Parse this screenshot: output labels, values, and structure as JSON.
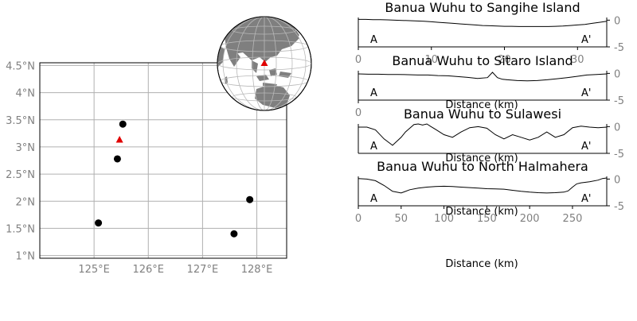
{
  "chart_data": [
    {
      "type": "scatter",
      "title": "",
      "x_ticks": [
        "125°E",
        "126°E",
        "127°E",
        "128°E"
      ],
      "x_tick_values": [
        125,
        126,
        127,
        128
      ],
      "y_ticks": [
        "1°N",
        "1.5°N",
        "2°N",
        "2.5°N",
        "3°N",
        "3.5°N",
        "4°N",
        "4.5°N"
      ],
      "y_tick_values": [
        1,
        1.5,
        2,
        2.5,
        3,
        3.5,
        4,
        4.5
      ],
      "xlim": [
        124.0,
        128.55
      ],
      "ylim": [
        0.95,
        4.55
      ],
      "grid": true,
      "series": [
        {
          "marker": "circle",
          "color": "#000000",
          "points": [
            [
              125.53,
              3.42
            ],
            [
              125.43,
              2.78
            ],
            [
              125.08,
              1.6
            ],
            [
              127.87,
              2.03
            ],
            [
              127.58,
              1.4
            ]
          ]
        },
        {
          "marker": "triangle",
          "color": "#e00000",
          "points": [
            [
              125.47,
              3.13
            ]
          ]
        }
      ],
      "inset": {
        "type": "globe",
        "marker": {
          "color": "#e00000",
          "symbol": "triangle"
        }
      }
    },
    {
      "type": "line",
      "title": "Banua Wuhu to Sangihe Island",
      "xlabel": "",
      "start_label": "A",
      "end_label": "A'",
      "x_ticks": [
        0,
        10,
        20,
        30
      ],
      "xlim": [
        0,
        34
      ],
      "y_ticks": [
        0,
        -5
      ],
      "ylim": [
        -5,
        0.5
      ],
      "x": [
        0,
        1,
        2,
        3,
        4,
        5,
        6,
        7,
        8,
        9,
        10,
        11,
        12,
        13,
        14,
        15,
        16,
        17,
        18,
        19,
        20,
        21,
        22,
        23,
        24,
        25,
        26,
        27,
        28,
        29,
        30,
        31,
        32,
        33,
        34
      ],
      "y": [
        0.15,
        0.15,
        0.1,
        0.1,
        0.05,
        0.0,
        -0.05,
        -0.1,
        -0.15,
        -0.2,
        -0.3,
        -0.4,
        -0.5,
        -0.6,
        -0.7,
        -0.8,
        -0.9,
        -1.0,
        -1.05,
        -1.1,
        -1.15,
        -1.15,
        -1.2,
        -1.2,
        -1.2,
        -1.2,
        -1.2,
        -1.15,
        -1.1,
        -1.0,
        -0.9,
        -0.8,
        -0.6,
        -0.4,
        -0.2
      ]
    },
    {
      "type": "line",
      "title": "Banua Wuhu to Sitaro Island",
      "xlabel": "Distance (km)",
      "start_label": "A",
      "end_label": "A'",
      "x_ticks": [
        0
      ],
      "xlim": [
        0,
        50
      ],
      "y_ticks": [
        0,
        -5
      ],
      "ylim": [
        -5,
        0.5
      ],
      "x": [
        0,
        2,
        4,
        6,
        8,
        10,
        12,
        14,
        16,
        18,
        20,
        22,
        24,
        26,
        27,
        28,
        29,
        30,
        32,
        34,
        36,
        38,
        40,
        42,
        44,
        46,
        48,
        50
      ],
      "y": [
        -0.1,
        -0.15,
        -0.15,
        -0.2,
        -0.2,
        -0.25,
        -0.3,
        -0.3,
        -0.4,
        -0.45,
        -0.6,
        -0.75,
        -0.95,
        -0.8,
        0.2,
        -0.8,
        -1.1,
        -1.2,
        -1.35,
        -1.4,
        -1.35,
        -1.2,
        -1.0,
        -0.8,
        -0.55,
        -0.3,
        -0.2,
        -0.1
      ]
    },
    {
      "type": "line",
      "title": "Banua Wuhu to Sulawesi",
      "xlabel": "Distance (km)",
      "start_label": "A",
      "end_label": "A'",
      "x_ticks": [],
      "xlim": [
        0,
        290
      ],
      "y_ticks": [
        0,
        -5
      ],
      "ylim": [
        -5,
        0.5
      ],
      "x": [
        0,
        10,
        20,
        30,
        40,
        50,
        55,
        60,
        65,
        70,
        75,
        80,
        85,
        90,
        100,
        110,
        120,
        130,
        140,
        150,
        160,
        170,
        180,
        190,
        200,
        210,
        220,
        230,
        240,
        250,
        260,
        270,
        280,
        290
      ],
      "y": [
        -0.1,
        -0.1,
        -0.6,
        -2.3,
        -3.5,
        -2.0,
        -1.0,
        -0.3,
        0.4,
        1.0,
        0.3,
        0.8,
        0.0,
        -0.5,
        -1.5,
        -2.0,
        -1.0,
        -0.2,
        0.0,
        -0.3,
        -1.5,
        -2.3,
        -1.5,
        -2.0,
        -2.5,
        -2.0,
        -1.0,
        -2.0,
        -1.5,
        -0.2,
        0.1,
        -0.1,
        -0.2,
        -0.1
      ]
    },
    {
      "type": "line",
      "title": "Banua Wuhu to North Halmahera",
      "xlabel": "Distance (km)",
      "start_label": "A",
      "end_label": "A'",
      "x_ticks": [
        0,
        50,
        100,
        150,
        200,
        250
      ],
      "xlim": [
        0,
        290
      ],
      "y_ticks": [
        0,
        -5
      ],
      "ylim": [
        -5,
        0.5
      ],
      "x": [
        0,
        10,
        20,
        30,
        40,
        50,
        60,
        70,
        80,
        90,
        100,
        110,
        120,
        130,
        140,
        150,
        160,
        170,
        180,
        190,
        200,
        210,
        220,
        230,
        240,
        245,
        250,
        255,
        260,
        270,
        280,
        285,
        290
      ],
      "y": [
        0.1,
        0.0,
        -0.3,
        -1.2,
        -2.3,
        -2.6,
        -2.0,
        -1.7,
        -1.5,
        -1.4,
        -1.35,
        -1.4,
        -1.5,
        -1.6,
        -1.7,
        -1.8,
        -1.85,
        -1.9,
        -2.1,
        -2.3,
        -2.45,
        -2.55,
        -2.6,
        -2.55,
        -2.45,
        -2.2,
        -1.5,
        -0.9,
        -0.7,
        -0.5,
        -0.2,
        0.1,
        0.2
      ]
    }
  ]
}
